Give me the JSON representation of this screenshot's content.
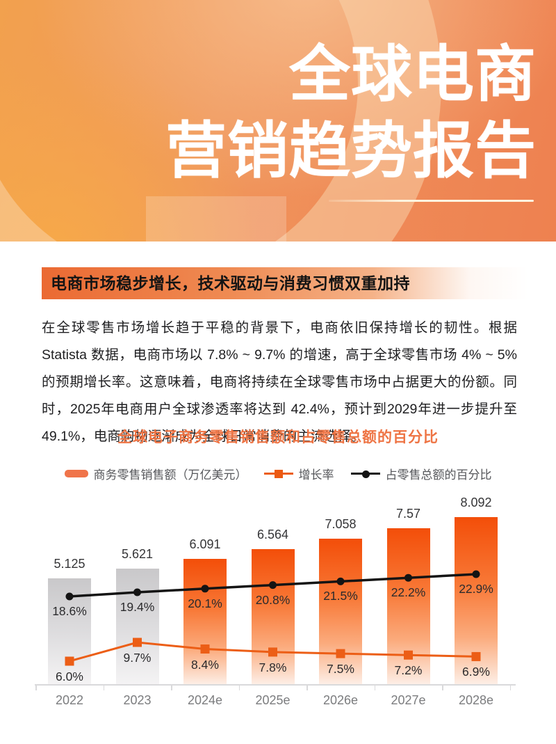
{
  "header": {
    "title_line1": "全球电商",
    "title_line2": "营销趋势报告"
  },
  "section": {
    "badge": "电商市场稳步增长，技术驱动与消费习惯双重加持",
    "paragraph": "在全球零售市场增长趋于平稳的背景下，电商依旧保持增长的韧性。根据 Statista 数据，电商市场以 7.8% ~ 9.7% 的增速，高于全球零售市场 4% ~ 5% 的预期增长率。这意味着，电商将持续在全球零售市场中占据更大的份额。同时，2025年电商用户全球渗透率将达到 42.4%，预计到2029年进一步提升至 49.1%，电商购物逐渐成为全球日常消费的主流选择。"
  },
  "chart_data": {
    "type": "bar",
    "title": "全球电子商务零售销售额和占零售总额的百分比",
    "categories": [
      "2022",
      "2023",
      "2024e",
      "2025e",
      "2026e",
      "2027e",
      "2028e"
    ],
    "series": [
      {
        "name": "商务零售销售额（万亿美元）",
        "type": "bar",
        "values": [
          5.125,
          5.621,
          6.091,
          6.564,
          7.058,
          7.57,
          8.092
        ],
        "labels": [
          "5.125",
          "5.621",
          "6.091",
          "6.564",
          "7.058",
          "7.57",
          "8.092"
        ],
        "bar_style_note": "2022-2023 gray (historical), 2024e-2028e orange gradient (forecast)"
      },
      {
        "name": "增长率",
        "type": "line",
        "values": [
          6.0,
          9.7,
          8.4,
          7.8,
          7.5,
          7.2,
          6.9
        ],
        "labels": [
          "6.0%",
          "9.7%",
          "8.4%",
          "7.8%",
          "7.5%",
          "7.2%",
          "6.9%"
        ]
      },
      {
        "name": "占零售总额的百分比",
        "type": "line",
        "values": [
          18.6,
          19.4,
          20.1,
          20.8,
          21.5,
          22.2,
          22.9
        ],
        "labels": [
          "18.6%",
          "19.4%",
          "20.1%",
          "20.8%",
          "21.5%",
          "22.2%",
          "22.9%"
        ]
      }
    ],
    "legend_position": "top",
    "grid": false,
    "colors": {
      "bar_forecast_top": "#f34e09",
      "bar_historical_top": "#c9c8ca",
      "growth_line": "#ec5e16",
      "share_line": "#141414",
      "title": "#ee7444",
      "header_accent": "#ee8150"
    }
  }
}
